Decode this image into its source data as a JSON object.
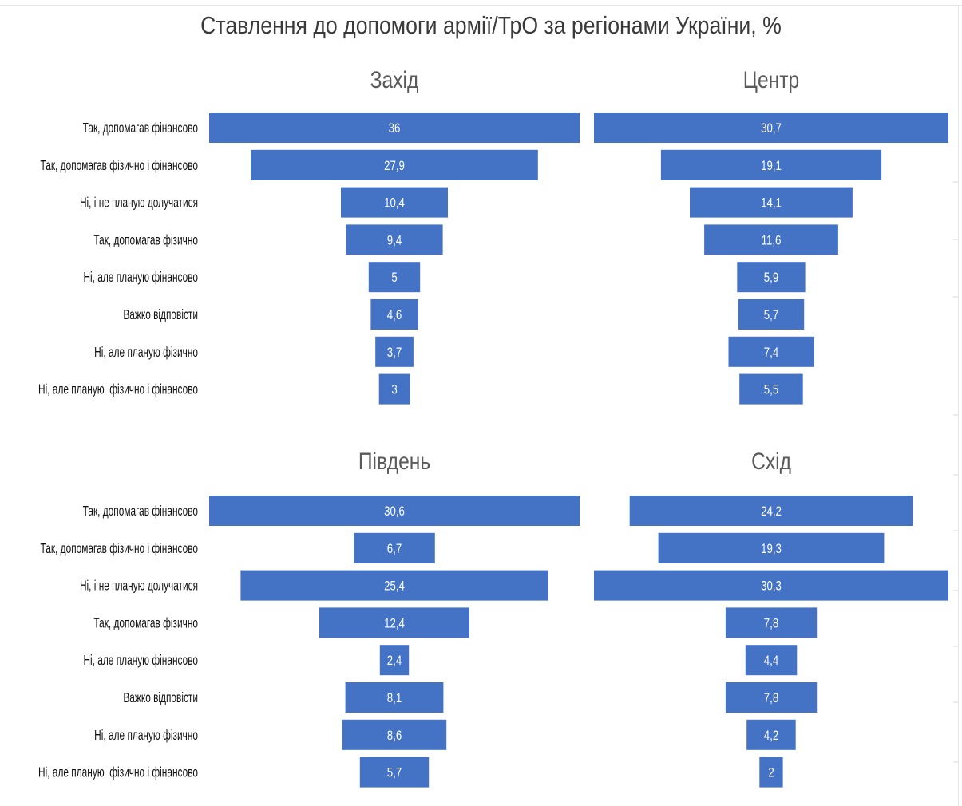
{
  "title": "Ставлення до допомоги армії/ТрО за регіонами України, %",
  "categories": [
    "Так, допомагав фінансово",
    "Так, допомагав фізично і фінансово",
    "Ні, і не планую долучатися",
    "Так, допомагав фізично",
    "Ні, але планую фінансово",
    "Важко відповісти",
    "Ні, але планую фізично",
    "Ні, але планую  фізично і фінансово"
  ],
  "colors": {
    "bar": "#4472c4",
    "bar_label": "#ffffff",
    "category_label": "#111111",
    "panel_title": "#595959"
  },
  "chart_data": [
    {
      "type": "bar",
      "orientation": "horizontal-centered",
      "title": "Захід",
      "categories": [
        "Так, допомагав фінансово",
        "Так, допомагав фізично і фінансово",
        "Ні, і не планую долучатися",
        "Так, допомагав фізично",
        "Ні, але планую фінансово",
        "Важко відповісти",
        "Ні, але планую фізично",
        "Ні, але планую  фізично і фінансово"
      ],
      "values": [
        36,
        27.9,
        10.4,
        9.4,
        5,
        4.6,
        3.7,
        3
      ],
      "value_labels": [
        "36",
        "27,9",
        "10,4",
        "9,4",
        "5",
        "4,6",
        "3,7",
        "3"
      ],
      "xlim": [
        0,
        36
      ],
      "grid": false,
      "legend": "none"
    },
    {
      "type": "bar",
      "orientation": "horizontal-centered",
      "title": "Центр",
      "categories": [
        "Так, допомагав фінансово",
        "Так, допомагав фізично і фінансово",
        "Ні, і не планую долучатися",
        "Так, допомагав фізично",
        "Ні, але планую фінансово",
        "Важко відповісти",
        "Ні, але планую фізично",
        "Ні, але планую  фізично і фінансово"
      ],
      "values": [
        30.7,
        19.1,
        14.1,
        11.6,
        5.9,
        5.7,
        7.4,
        5.5
      ],
      "value_labels": [
        "30,7",
        "19,1",
        "14,1",
        "11,6",
        "5,9",
        "5,7",
        "7,4",
        "5,5"
      ],
      "xlim": [
        0,
        30.7
      ],
      "grid": false,
      "legend": "none"
    },
    {
      "type": "bar",
      "orientation": "horizontal-centered",
      "title": "Південь",
      "categories": [
        "Так, допомагав фінансово",
        "Так, допомагав фізично і фінансово",
        "Ні, і не планую долучатися",
        "Так, допомагав фізично",
        "Ні, але планую фінансово",
        "Важко відповісти",
        "Ні, але планую фізично",
        "Ні, але планую  фізично і фінансово"
      ],
      "values": [
        30.6,
        6.7,
        25.4,
        12.4,
        2.4,
        8.1,
        8.6,
        5.7
      ],
      "value_labels": [
        "30,6",
        "6,7",
        "25,4",
        "12,4",
        "2,4",
        "8,1",
        "8,6",
        "5,7"
      ],
      "xlim": [
        0,
        30.6
      ],
      "grid": false,
      "legend": "none"
    },
    {
      "type": "bar",
      "orientation": "horizontal-centered",
      "title": "Схід",
      "categories": [
        "Так, допомагав фінансово",
        "Так, допомагав фізично і фінансово",
        "Ні, і не планую долучатися",
        "Так, допомагав фізично",
        "Ні, але планую фінансово",
        "Важко відповісти",
        "Ні, але планую фізично",
        "Ні, але планую  фізично і фінансово"
      ],
      "values": [
        24.2,
        19.3,
        30.3,
        7.8,
        4.4,
        7.8,
        4.2,
        2
      ],
      "value_labels": [
        "24,2",
        "19,3",
        "30,3",
        "7,8",
        "4,4",
        "7,8",
        "4,2",
        "2"
      ],
      "xlim": [
        0,
        30.3
      ],
      "grid": false,
      "legend": "none"
    }
  ]
}
